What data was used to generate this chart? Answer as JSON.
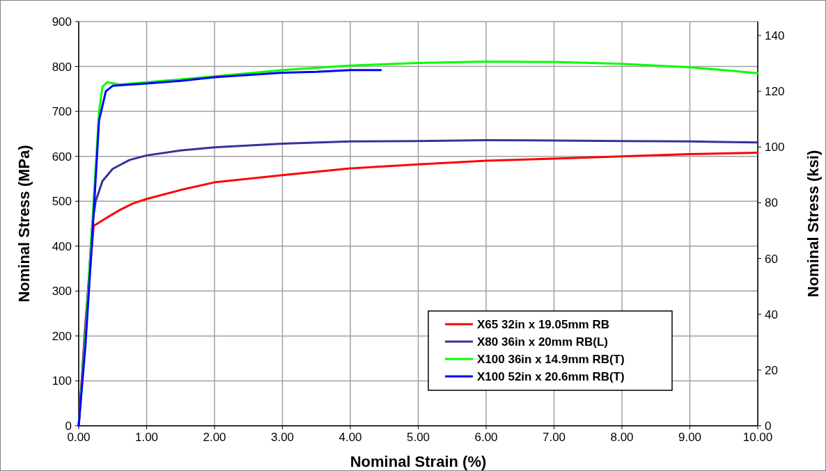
{
  "chart_data": {
    "type": "line",
    "xlabel": "Nominal Strain (%)",
    "ylabel": "Nominal Stress (MPa)",
    "y2label": "Nominal Stress (ksi)",
    "xlim": [
      0,
      10
    ],
    "xticks": [
      {
        "value": 0,
        "label": "0.00"
      },
      {
        "value": 1,
        "label": "1.00"
      },
      {
        "value": 2,
        "label": "2.00"
      },
      {
        "value": 3,
        "label": "3.00"
      },
      {
        "value": 4,
        "label": "4.00"
      },
      {
        "value": 5,
        "label": "5.00"
      },
      {
        "value": 6,
        "label": "6.00"
      },
      {
        "value": 7,
        "label": "7.00"
      },
      {
        "value": 8,
        "label": "8.00"
      },
      {
        "value": 9,
        "label": "9.00"
      },
      {
        "value": 10,
        "label": "10.00"
      }
    ],
    "ylim": [
      0,
      900
    ],
    "yticks": [
      0,
      100,
      200,
      300,
      400,
      500,
      600,
      700,
      800,
      900
    ],
    "y2lim": [
      0,
      145
    ],
    "y2ticks": [
      0,
      20,
      40,
      60,
      80,
      100,
      120,
      140
    ],
    "grid": true,
    "legend": "bottom right",
    "marker": "none",
    "line_style": "solid",
    "series": [
      {
        "name": "X65 32in x 19.05mm RB",
        "color": "#ff0000",
        "x": [
          0,
          0.1,
          0.22,
          0.4,
          0.6,
          0.8,
          1,
          1.5,
          2,
          3,
          4,
          5,
          6,
          7,
          8,
          9,
          10
        ],
        "values": [
          0,
          230,
          445,
          462,
          480,
          495,
          505,
          525,
          542,
          558,
          573,
          582,
          590,
          595,
          600,
          605,
          608
        ]
      },
      {
        "name": "X80 36in x 20mm RB(L)",
        "color": "#333399",
        "x": [
          0,
          0.15,
          0.2,
          0.25,
          0.35,
          0.5,
          0.75,
          1,
          1.5,
          2,
          3,
          4,
          5,
          6,
          7,
          8,
          9,
          10
        ],
        "values": [
          0,
          330,
          450,
          500,
          545,
          572,
          592,
          602,
          613,
          620,
          628,
          633,
          634,
          636,
          635,
          634,
          633,
          631
        ]
      },
      {
        "name": "X100 36in x 14.9mm RB(T)",
        "color": "#00ff00",
        "x": [
          0,
          0.1,
          0.2,
          0.3,
          0.35,
          0.42,
          0.6,
          1,
          2,
          3,
          4,
          5,
          6,
          7,
          8,
          9,
          9.5,
          10
        ],
        "values": [
          0,
          200,
          450,
          700,
          755,
          765,
          760,
          765,
          778,
          792,
          802,
          808,
          811,
          810,
          806,
          798,
          792,
          785
        ]
      },
      {
        "name": "X100 52in x 20.6mm RB(T)",
        "color": "#0000ff",
        "x": [
          0,
          0.1,
          0.2,
          0.3,
          0.4,
          0.5,
          1,
          1.5,
          2,
          3,
          3.5,
          4,
          4.45
        ],
        "values": [
          0,
          180,
          420,
          680,
          745,
          757,
          762,
          768,
          776,
          786,
          788,
          792,
          792
        ]
      }
    ]
  }
}
